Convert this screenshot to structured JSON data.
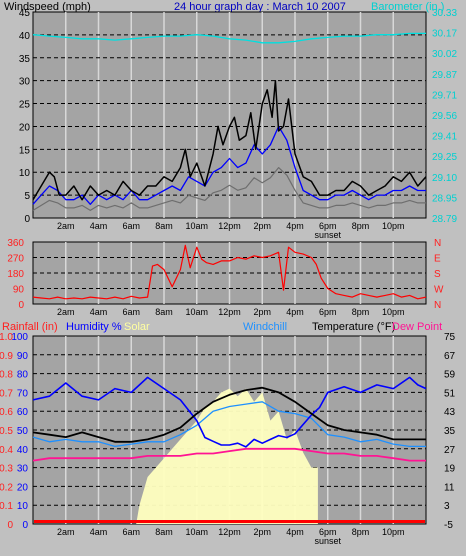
{
  "title": "24 hour graph day : March 10 2007",
  "colors": {
    "plot_bg": "#a4a4a4",
    "grid": "#000000",
    "grid_v": "#d8d8d8",
    "wind_gust": "#000000",
    "wind_avg": "#0000ff",
    "wind_grey": "#6e6e6e",
    "barometer": "#00e0e0",
    "direction": "#ff0000",
    "humidity": "#0000ff",
    "temperature": "#000000",
    "windchill": "#1e90ff",
    "dewpoint": "#ff1493",
    "solar": "#ffffc0",
    "rainfall": "#ff0000",
    "accent_text_blue": "#0000c0"
  },
  "chart_data": [
    {
      "type": "line",
      "ylabel_left": "Windspeed (mph)",
      "ylabel_right": "Barometer (in.)",
      "x_ticks": [
        "2am",
        "4am",
        "6am",
        "8am",
        "10am",
        "12pm",
        "2pm",
        "4pm",
        "6pm",
        "8pm",
        "10pm"
      ],
      "y_left_ticks": [
        "0",
        "5",
        "10",
        "15",
        "20",
        "25",
        "30",
        "35",
        "40",
        "45"
      ],
      "y_left_range": [
        0,
        45
      ],
      "y_right_ticks": [
        "28.79",
        "28.95",
        "29.10",
        "29.25",
        "29.41",
        "29.56",
        "29.71",
        "29.87",
        "30.02",
        "30.17",
        "30.33"
      ],
      "y_right_range": [
        28.79,
        30.33
      ],
      "x_range_hours": [
        0,
        24
      ],
      "series": [
        {
          "name": "Windspeed (mph)",
          "role": "gust",
          "x": [
            0,
            0.5,
            1,
            1.3,
            1.6,
            2,
            2.5,
            3,
            3.5,
            4,
            4.5,
            5,
            5.5,
            6,
            6.5,
            7,
            7.5,
            8,
            8.5,
            9,
            9.3,
            9.6,
            10,
            10.5,
            11,
            11.3,
            11.6,
            12,
            12.3,
            12.6,
            13,
            13.3,
            13.6,
            14,
            14.3,
            14.6,
            14.8,
            15,
            15.3,
            15.6,
            16,
            16.5,
            17,
            17.5,
            18,
            18.5,
            19,
            19.5,
            20,
            20.5,
            21,
            21.5,
            22,
            22.5,
            23,
            23.5,
            24
          ],
          "values": [
            4,
            7,
            10,
            9,
            5,
            5,
            7,
            4,
            7,
            5,
            6,
            5,
            8,
            6,
            5,
            7,
            7,
            9,
            8,
            11,
            15,
            9,
            12,
            7,
            14,
            20,
            16,
            20,
            22,
            17,
            18,
            23,
            15,
            25,
            28,
            22,
            30,
            19,
            20,
            26,
            14,
            9,
            8,
            5,
            5,
            6,
            6,
            8,
            7,
            5,
            6,
            7,
            9,
            8,
            10,
            7,
            9
          ]
        },
        {
          "name": "Windspeed (mph)",
          "role": "average",
          "x": [
            0,
            0.5,
            1,
            1.5,
            2,
            2.5,
            3,
            3.5,
            4,
            4.5,
            5,
            5.5,
            6,
            6.5,
            7,
            7.5,
            8,
            8.5,
            9,
            9.5,
            10,
            10.5,
            11,
            11.5,
            12,
            12.5,
            13,
            13.5,
            14,
            14.5,
            15,
            15.5,
            16,
            16.5,
            17,
            17.5,
            18,
            18.5,
            19,
            19.5,
            20,
            20.5,
            21,
            21.5,
            22,
            22.5,
            23,
            23.5,
            24
          ],
          "values": [
            3,
            5,
            7,
            6,
            4,
            4,
            5,
            3,
            5,
            4,
            5,
            4,
            6,
            4,
            4,
            5,
            6,
            7,
            6,
            9,
            8,
            7,
            10,
            11,
            13,
            11,
            12,
            16,
            14,
            16,
            20,
            17,
            11,
            6,
            5,
            4,
            4,
            5,
            5,
            6,
            5,
            4,
            5,
            5,
            6,
            6,
            7,
            6,
            6
          ]
        },
        {
          "name": "Barometer (in.)",
          "x": [
            0,
            1,
            2,
            3,
            4,
            5,
            6,
            7,
            8,
            9,
            10,
            11,
            12,
            13,
            14,
            15,
            16,
            17,
            18,
            19,
            20,
            21,
            22,
            23,
            24
          ],
          "values": [
            30.16,
            30.15,
            30.14,
            30.13,
            30.13,
            30.12,
            30.13,
            30.14,
            30.15,
            30.15,
            30.16,
            30.15,
            30.13,
            30.12,
            30.1,
            30.1,
            30.11,
            30.13,
            30.14,
            30.15,
            30.15,
            30.16,
            30.16,
            30.17,
            30.17
          ]
        }
      ]
    },
    {
      "type": "line",
      "y_left_ticks": [
        "360",
        "270",
        "180",
        "90",
        "0"
      ],
      "y_left_range": [
        0,
        360
      ],
      "y_right_ticks": [
        "N",
        "W",
        "S",
        "E",
        "N"
      ],
      "series": [
        {
          "name": "Wind direction",
          "x": [
            0,
            0.5,
            1,
            1.5,
            2,
            2.5,
            3,
            3.5,
            4,
            4.5,
            5,
            5.5,
            6,
            6.5,
            7,
            7.3,
            7.6,
            8,
            8.5,
            9,
            9.3,
            9.6,
            10,
            10.3,
            10.6,
            11,
            11.5,
            12,
            12.5,
            13,
            13.5,
            14,
            14.5,
            15,
            15.3,
            15.6,
            16,
            16.5,
            17,
            17.3,
            17.6,
            18,
            18.5,
            19,
            19.5,
            20,
            20.5,
            21,
            21.5,
            22,
            22.5,
            23,
            23.5,
            24
          ],
          "values": [
            40,
            35,
            30,
            40,
            30,
            35,
            30,
            40,
            35,
            30,
            40,
            30,
            45,
            35,
            40,
            220,
            230,
            200,
            100,
            200,
            340,
            210,
            330,
            260,
            240,
            230,
            250,
            250,
            270,
            260,
            280,
            270,
            280,
            300,
            80,
            330,
            300,
            290,
            270,
            230,
            150,
            90,
            60,
            50,
            40,
            60,
            50,
            40,
            50,
            60,
            40,
            50,
            30,
            40
          ]
        }
      ]
    },
    {
      "type": "line",
      "legend": [
        "Rainfall (in)",
        "Humidity %",
        "Solar",
        "Windchill",
        "Temperature (°F)",
        "Dew Point"
      ],
      "y_left_ticks": [
        "0",
        "0.1",
        "0.2",
        "0.3",
        "0.4",
        "0.5",
        "0.6",
        "0.7",
        "0.8",
        "0.9",
        "1.0"
      ],
      "y_left_range": [
        0,
        1.0
      ],
      "y_humidity_ticks": [
        "0",
        "10",
        "20",
        "30",
        "40",
        "50",
        "60",
        "70",
        "80",
        "90",
        "100"
      ],
      "y_humidity_range": [
        0,
        100
      ],
      "y_right_ticks": [
        "-5",
        "3",
        "11",
        "19",
        "27",
        "35",
        "43",
        "51",
        "59",
        "67",
        "75"
      ],
      "y_right_range": [
        -5,
        75
      ],
      "series": [
        {
          "name": "Humidity %",
          "x": [
            0,
            1,
            2,
            3,
            4,
            5,
            6,
            7,
            8,
            9,
            10,
            10.5,
            11,
            11.5,
            12,
            12.5,
            13,
            13.5,
            14,
            14.5,
            15,
            15.5,
            16,
            17,
            17.5,
            18,
            19,
            20,
            21,
            22,
            23,
            23.5,
            24
          ],
          "values": [
            66,
            68,
            75,
            68,
            66,
            72,
            70,
            78,
            72,
            66,
            55,
            46,
            44,
            42,
            42,
            43,
            41,
            45,
            43,
            45,
            47,
            46,
            48,
            58,
            62,
            70,
            73,
            70,
            74,
            72,
            78,
            74,
            72
          ]
        },
        {
          "name": "Temperature (°F)",
          "x": [
            0,
            1,
            2,
            3,
            4,
            5,
            6,
            7,
            8,
            9,
            10,
            11,
            12,
            13,
            14,
            15,
            16,
            17,
            18,
            19,
            20,
            21,
            22,
            23,
            24
          ],
          "values": [
            34,
            33,
            32,
            34,
            32,
            30,
            30,
            31,
            33,
            36,
            42,
            47,
            50,
            52,
            53,
            51,
            47,
            42,
            37,
            35,
            34,
            33,
            31,
            31,
            31
          ]
        },
        {
          "name": "Windchill",
          "x": [
            0,
            1,
            2,
            3,
            4,
            5,
            6,
            7,
            8,
            9,
            10,
            11,
            12,
            13,
            14,
            15,
            16,
            17,
            18,
            19,
            20,
            21,
            22,
            23,
            24
          ],
          "values": [
            32,
            30,
            31,
            30,
            30,
            28,
            29,
            30,
            30,
            33,
            37,
            43,
            45,
            46,
            47,
            43,
            42,
            40,
            33,
            32,
            30,
            31,
            29,
            28,
            28
          ]
        },
        {
          "name": "Dew Point",
          "x": [
            0,
            1,
            2,
            3,
            4,
            5,
            6,
            7,
            8,
            9,
            10,
            11,
            12,
            13,
            14,
            15,
            16,
            17,
            18,
            19,
            20,
            21,
            22,
            23,
            24
          ],
          "values": [
            22,
            23,
            23,
            23,
            23,
            23,
            23,
            24,
            24,
            24,
            25,
            25,
            26,
            27,
            27,
            27,
            27,
            26,
            25,
            25,
            24,
            24,
            23,
            22,
            22
          ]
        },
        {
          "name": "Solar",
          "x": [
            6.3,
            6.5,
            7,
            7.5,
            8,
            8.5,
            9,
            9.5,
            10,
            10.5,
            11,
            11.5,
            12,
            12.5,
            13,
            13.5,
            14,
            14.5,
            15,
            15.5,
            16,
            16.5,
            17,
            17.4
          ],
          "values": [
            0,
            0.1,
            0.25,
            0.3,
            0.35,
            0.4,
            0.45,
            0.5,
            0.55,
            0.62,
            0.65,
            0.7,
            0.72,
            0.68,
            0.72,
            0.65,
            0.7,
            0.55,
            0.6,
            0.45,
            0.5,
            0.38,
            0.3,
            0.3
          ]
        },
        {
          "name": "Rainfall (in)",
          "x": [
            0,
            24
          ],
          "values": [
            0,
            0
          ]
        }
      ]
    }
  ],
  "sunset_label": "sunset"
}
